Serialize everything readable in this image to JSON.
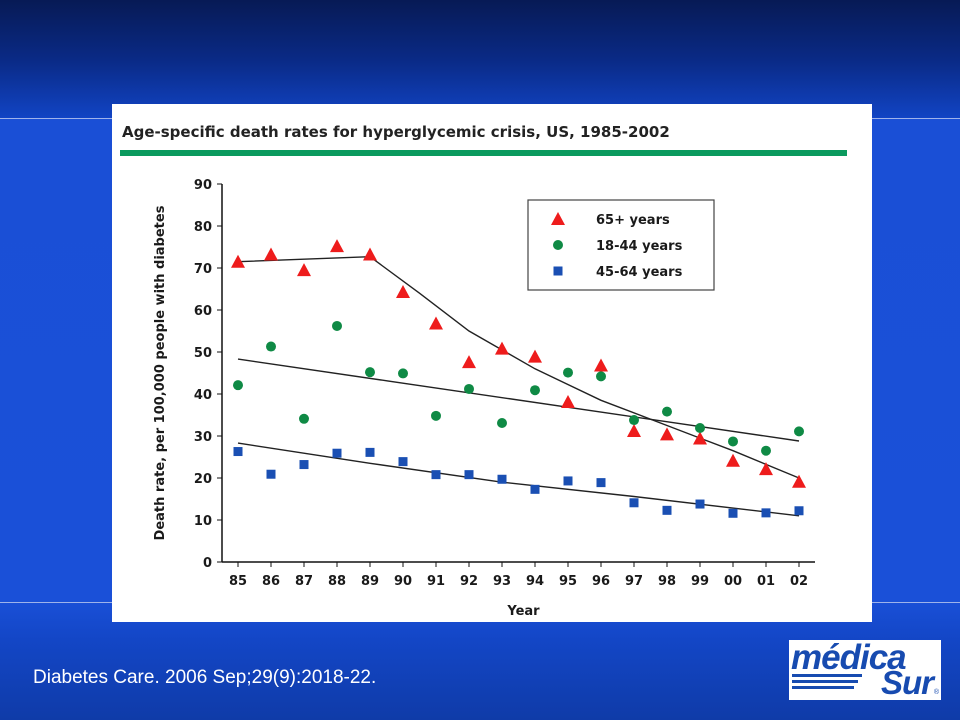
{
  "citation": "Diabetes Care. 2006 Sep;29(9):2018-22.",
  "logo": {
    "line1": "médica",
    "line2": "Sur",
    "mark": "®"
  },
  "chart_data": {
    "type": "scatter",
    "title": "Age-specific death rates for hyperglycemic crisis, US, 1985-2002",
    "xlabel": "Year",
    "ylabel": "Death rate, per 100,000 people with diabetes",
    "categories": [
      "85",
      "86",
      "87",
      "88",
      "89",
      "90",
      "91",
      "92",
      "93",
      "94",
      "95",
      "96",
      "97",
      "98",
      "99",
      "00",
      "01",
      "02"
    ],
    "ylim": [
      0,
      90
    ],
    "yticks": [
      0,
      10,
      20,
      30,
      40,
      50,
      60,
      70,
      80,
      90
    ],
    "grid": false,
    "legend_position": "top-right",
    "accent_color": "#0b9a5e",
    "series": [
      {
        "name": "65+ years",
        "marker": "triangle",
        "color": "#ee1c1c",
        "values": [
          71.5,
          73.2,
          69.5,
          75.2,
          73.2,
          64.3,
          56.8,
          47.6,
          50.8,
          48.9,
          38.1,
          46.8,
          31.2,
          30.4,
          29.4,
          24.1,
          22.1,
          19.1
        ],
        "trend": [
          [
            0,
            71.5
          ],
          [
            4,
            72.7
          ],
          [
            5.5,
            64.0
          ],
          [
            7,
            55.0
          ],
          [
            9,
            46.0
          ],
          [
            11,
            38.5
          ],
          [
            13,
            32.5
          ],
          [
            14,
            29.5
          ],
          [
            15,
            26.5
          ],
          [
            17,
            20.0
          ]
        ]
      },
      {
        "name": "18-44 years",
        "marker": "circle",
        "color": "#0f8a45",
        "values": [
          42.1,
          51.3,
          34.1,
          56.2,
          45.2,
          44.9,
          34.8,
          41.2,
          33.1,
          40.9,
          45.1,
          44.2,
          33.8,
          35.8,
          31.9,
          28.7,
          26.5,
          31.1
        ],
        "trend": [
          [
            0,
            48.3
          ],
          [
            17,
            28.8
          ]
        ]
      },
      {
        "name": "45-64 years",
        "marker": "square",
        "color": "#1a4fb3",
        "values": [
          26.3,
          20.9,
          23.2,
          25.9,
          26.1,
          23.9,
          20.8,
          20.8,
          19.7,
          17.3,
          19.3,
          18.9,
          14.1,
          12.3,
          13.8,
          11.6,
          11.7,
          12.2
        ],
        "trend": [
          [
            0,
            28.3
          ],
          [
            4,
            23.5
          ],
          [
            8,
            19.0
          ],
          [
            12,
            15.6
          ],
          [
            17,
            11.0
          ]
        ]
      }
    ]
  }
}
